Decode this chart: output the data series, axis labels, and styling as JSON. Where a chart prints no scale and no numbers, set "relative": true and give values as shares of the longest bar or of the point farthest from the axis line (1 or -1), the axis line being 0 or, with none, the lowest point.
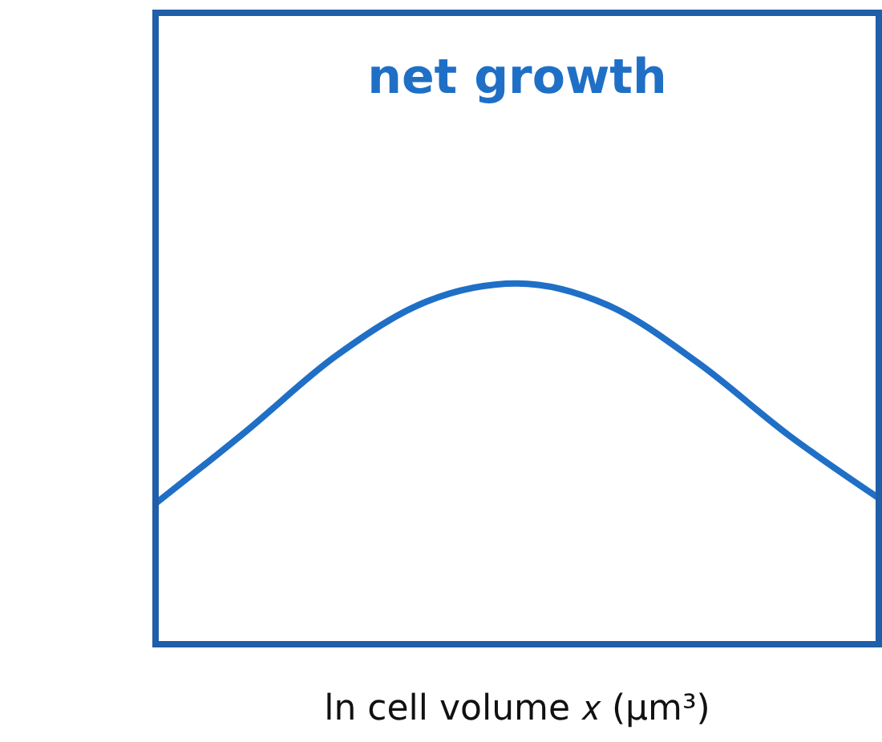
{
  "chart_data": {
    "type": "line",
    "title": "net growth",
    "xlabel": "ln cell volume 𝑥 (μm³)",
    "relative": true,
    "categories": [
      null,
      null,
      null,
      null,
      null,
      null,
      null,
      null,
      null
    ],
    "series": [
      {
        "color": "#1f6fc6",
        "values": [
          0.39,
          0.59,
          0.8,
          0.95,
          1.0,
          0.94,
          0.78,
          0.58,
          0.405
        ]
      }
    ]
  }
}
